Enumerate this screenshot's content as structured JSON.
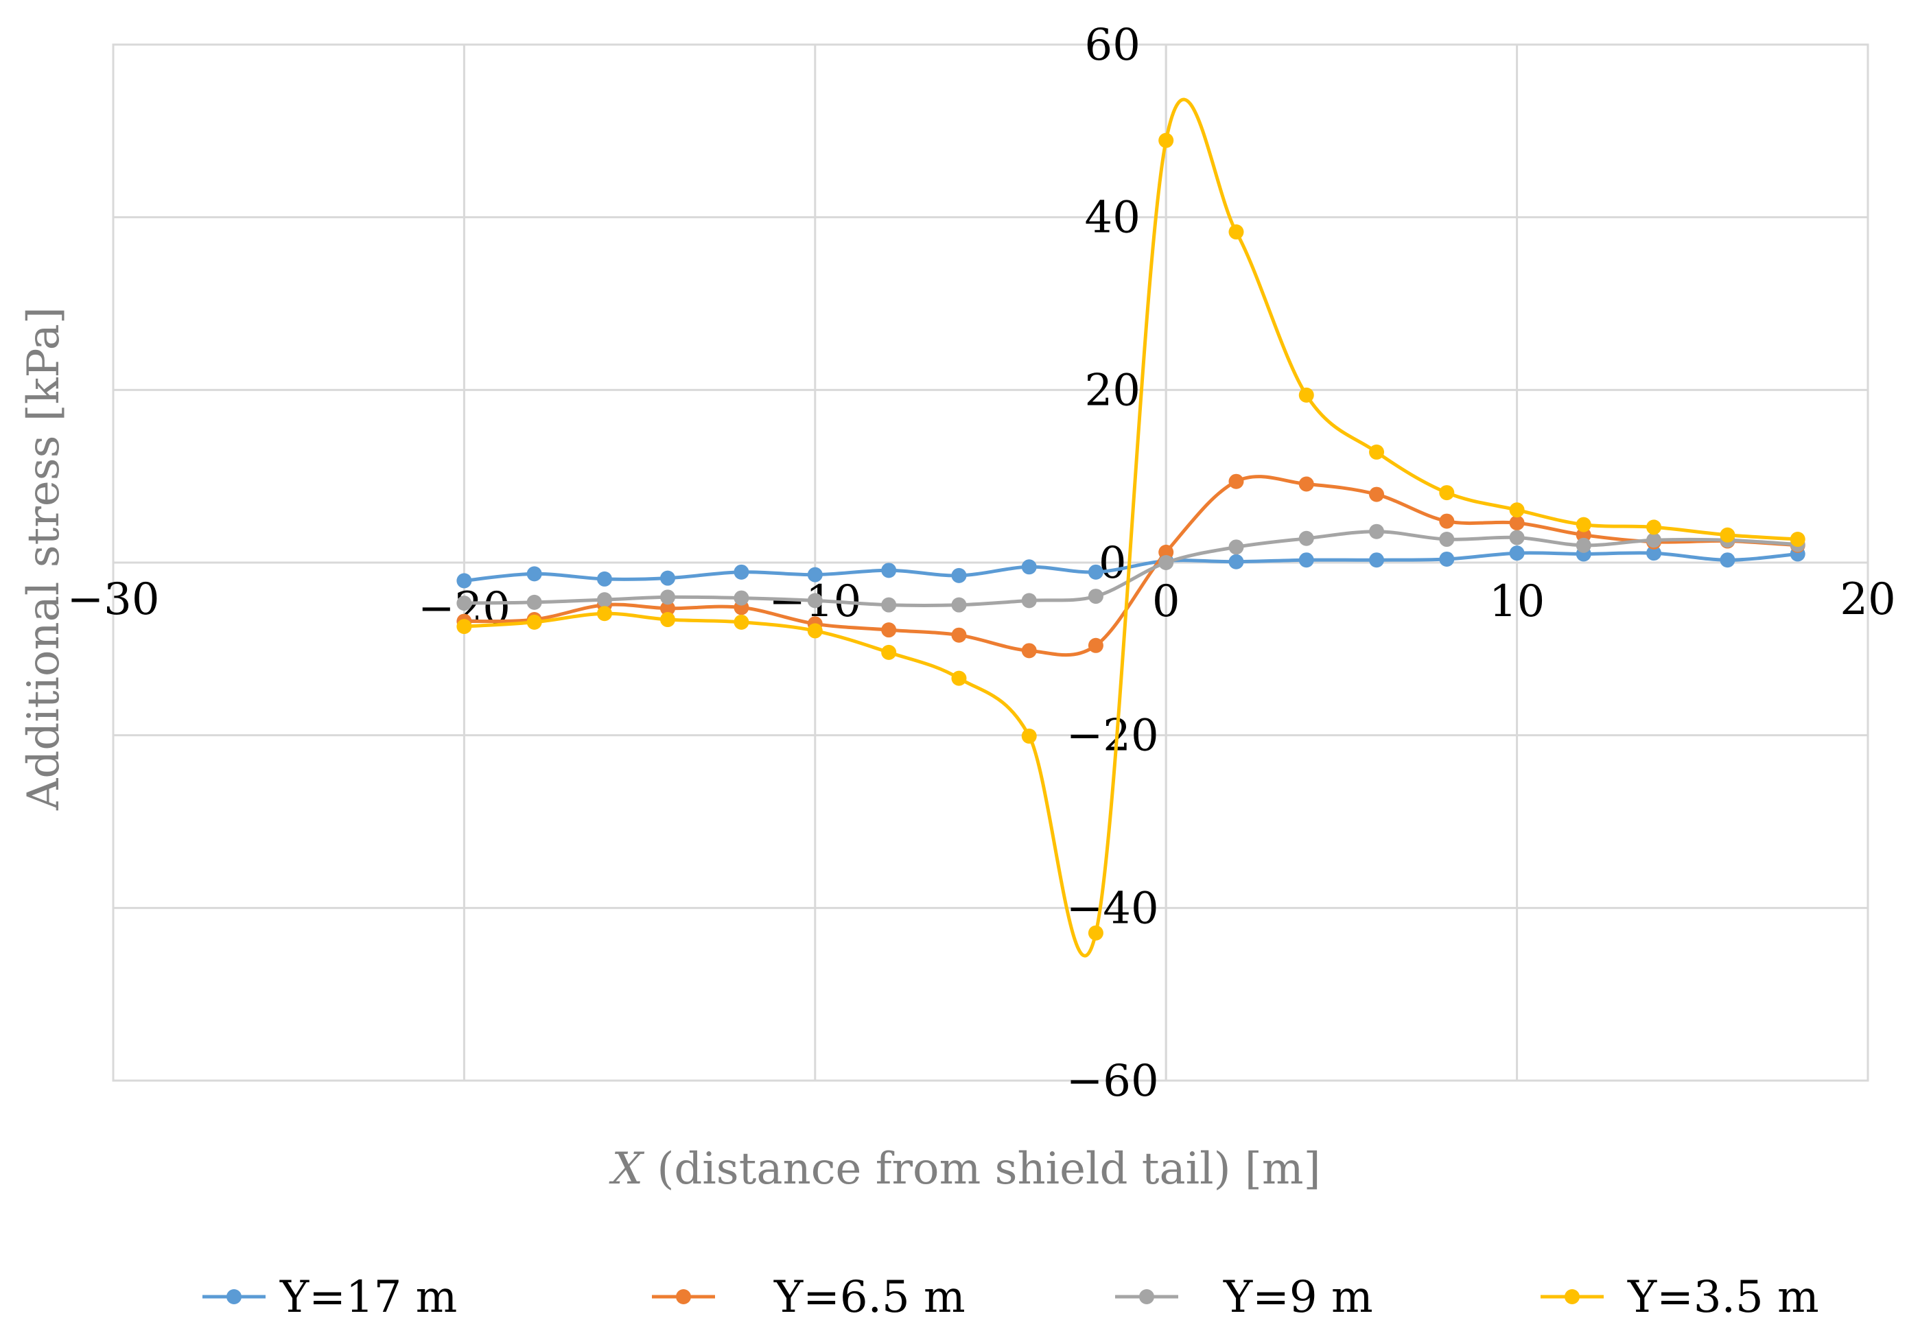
{
  "chart_data": {
    "type": "scatter",
    "title": "",
    "xlabel_italic": "X",
    "xlabel_rest": " (distance from shield tail) [m]",
    "ylabel": "Additional stress [kPa]",
    "xlim": [
      -30,
      20
    ],
    "ylim": [
      -60,
      60
    ],
    "xticks": [
      -30,
      -20,
      -10,
      0,
      10,
      20
    ],
    "yticks": [
      -60,
      -40,
      -20,
      0,
      20,
      40,
      60
    ],
    "xtick_labels": [
      "−30",
      "−20",
      "−10",
      "0",
      "10",
      "20"
    ],
    "ytick_labels": [
      "−60",
      "−40",
      "−20",
      "0",
      "20",
      "40",
      "60"
    ],
    "grid": true,
    "legend_position": "bottom",
    "series": [
      {
        "name": "Y=17 m",
        "color": "#5b9bd5",
        "x": [
          -20,
          -18,
          -16,
          -14.2,
          -12.1,
          -10,
          -7.9,
          -5.9,
          -3.9,
          -2,
          0,
          2,
          4,
          6,
          8,
          10,
          11.9,
          13.9,
          16,
          18
        ],
        "y": [
          -2.1,
          -1.3,
          -1.9,
          -1.8,
          -1.1,
          -1.4,
          -0.9,
          -1.5,
          -0.5,
          -1.1,
          0.2,
          0.1,
          0.3,
          0.3,
          0.4,
          1.1,
          1.0,
          1.1,
          0.3,
          1.0
        ]
      },
      {
        "name": "Y=6.5 m",
        "color": "#ed7d31",
        "x": [
          -20,
          -18,
          -16,
          -14.2,
          -12.1,
          -10,
          -7.9,
          -5.9,
          -3.9,
          -2,
          0,
          2,
          4,
          6,
          8,
          10,
          11.9,
          13.9,
          16,
          18
        ],
        "y": [
          -6.8,
          -6.6,
          -4.9,
          -5.3,
          -5.2,
          -7.1,
          -7.8,
          -8.4,
          -10.2,
          -9.6,
          1.2,
          9.4,
          9.1,
          7.9,
          4.8,
          4.6,
          3.2,
          2.4,
          2.5,
          2.0
        ]
      },
      {
        "name": "Y=9 m",
        "color": "#a5a5a5",
        "x": [
          -20,
          -18,
          -16,
          -14.2,
          -12.1,
          -10,
          -7.9,
          -5.9,
          -3.9,
          -2,
          0,
          2,
          4,
          6,
          8,
          10,
          11.9,
          13.9,
          16,
          18
        ],
        "y": [
          -4.7,
          -4.6,
          -4.3,
          -4.0,
          -4.1,
          -4.4,
          -4.9,
          -4.9,
          -4.4,
          -3.9,
          0.0,
          1.8,
          2.8,
          3.6,
          2.7,
          2.9,
          2.0,
          2.6,
          2.6,
          2.1
        ]
      },
      {
        "name": "Y=3.5 m",
        "color": "#ffc000",
        "x": [
          -20,
          -18,
          -16,
          -14.2,
          -12.1,
          -10,
          -7.9,
          -5.9,
          -3.9,
          -2,
          0,
          2,
          4,
          6,
          8,
          10,
          11.9,
          13.9,
          16,
          18
        ],
        "y": [
          -7.4,
          -6.9,
          -5.9,
          -6.6,
          -6.9,
          -7.9,
          -10.4,
          -13.4,
          -20.1,
          -42.9,
          48.9,
          38.3,
          19.4,
          12.8,
          8.1,
          6.1,
          4.4,
          4.1,
          3.2,
          2.7
        ]
      }
    ]
  }
}
